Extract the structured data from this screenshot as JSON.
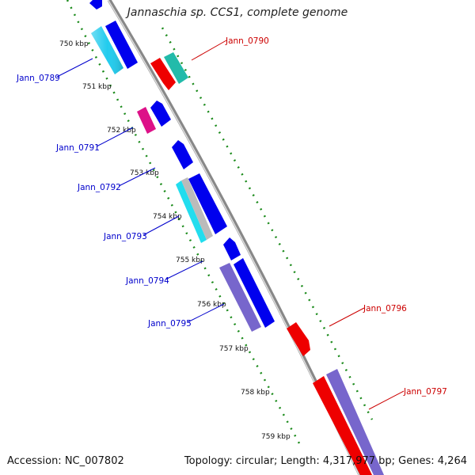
{
  "title": "Jannaschia sp. CCS1, complete genome",
  "footer": {
    "accession": "Accession: NC_007802",
    "topology": "Topology: circular; Length: 4,317,977 bp; Genes: 4,264"
  },
  "colors": {
    "forward_label": "#0000cc",
    "reverse_label": "#cc0000",
    "backbone": "#888888",
    "tick_dots": "#1a8a1a",
    "blue": "#0000ee",
    "cyan": "#22ccee",
    "teal": "#22bbaa",
    "red": "#ee0000",
    "magenta": "#dd1188",
    "gray": "#bbbbbb",
    "purple": "#7766cc"
  },
  "kbp_labels": [
    "750 kbp",
    "751 kbp",
    "752 kbp",
    "753 kbp",
    "754 kbp",
    "755 kbp",
    "756 kbp",
    "757 kbp",
    "758 kbp",
    "759 kbp"
  ],
  "gene_labels": [
    {
      "text": "Jann_0789",
      "strand": "forward"
    },
    {
      "text": "Jann_0791",
      "strand": "forward"
    },
    {
      "text": "Jann_0792",
      "strand": "forward"
    },
    {
      "text": "Jann_0793",
      "strand": "forward"
    },
    {
      "text": "Jann_0794",
      "strand": "forward"
    },
    {
      "text": "Jann_0795",
      "strand": "forward"
    },
    {
      "text": "Jann_0790",
      "strand": "reverse"
    },
    {
      "text": "Jann_0796",
      "strand": "reverse"
    },
    {
      "text": "Jann_0797",
      "strand": "reverse"
    }
  ]
}
